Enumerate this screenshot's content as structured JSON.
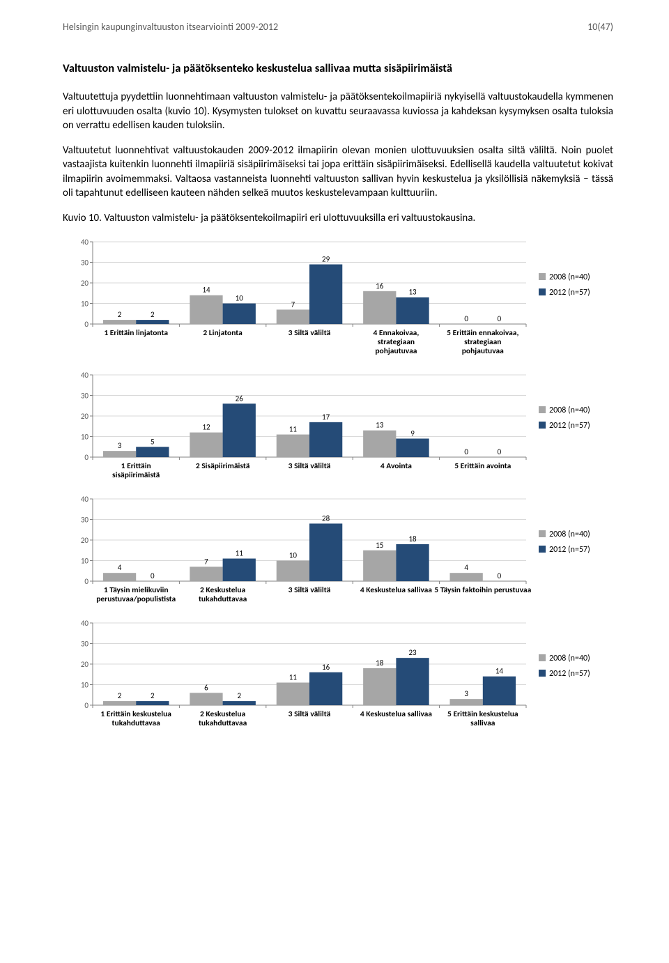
{
  "header": {
    "left": "Helsingin kaupunginvaltuuston itsearviointi 2009-2012",
    "right": "10(47)"
  },
  "section_title": "Valtuuston valmistelu- ja päätöksenteko keskustelua sallivaa mutta sisäpiirimäistä",
  "para1": "Valtuutettuja pyydettiin luonnehtimaan valtuuston valmistelu- ja päätöksentekoilmapiiriä nykyisellä valtuustokaudella kymmenen eri ulottuvuuden osalta (kuvio 10). Kysymysten tulokset on kuvattu seuraavassa kuviossa ja kahdeksan kysymyksen osalta tuloksia on verrattu edellisen kauden tuloksiin.",
  "para2": "Valtuutetut luonnehtivat valtuustokauden 2009-2012 ilmapiirin olevan monien ulottuvuuksien osalta siltä väliltä. Noin puolet vastaajista kuitenkin luonnehti ilmapiiriä sisäpiirimäiseksi tai jopa erittäin sisäpiirimäiseksi. Edellisellä kaudella valtuutetut kokivat ilmapiirin avoimemmaksi. Valtaosa vastanneista luonnehti valtuuston sallivan hyvin keskustelua ja yksilöllisiä näkemyksiä – tässä oli tapahtunut edelliseen kauteen nähden selkeä muutos keskustelevampaan kulttuuriin.",
  "caption": "Kuvio 10. Valtuuston valmistelu- ja päätöksentekoilmapiiri eri ulottuvuuksilla eri valtuustokausina.",
  "legend": {
    "series_a": "2008 (n=40)",
    "series_b": "2012 (n=57)"
  },
  "colors": {
    "bar_a": "#a6a6a6",
    "bar_b": "#254b77",
    "axis": "#808080",
    "grid": "#d9d9d9",
    "text": "#000000",
    "bg": "#ffffff"
  },
  "chart_meta": {
    "type": "bar",
    "ylim": [
      0,
      40
    ],
    "ytick_step": 10,
    "bar_width_ratio": 0.38,
    "label_fontsize": 11,
    "cat_fontsize": 11.5,
    "axis_fontsize": 11
  },
  "charts": [
    {
      "categories": [
        [
          "1 Erittäin linjatonta"
        ],
        [
          "2 Linjatonta"
        ],
        [
          "3 Siltä väliltä"
        ],
        [
          "4 Ennakoivaa,",
          "strategiaan",
          "pohjautuvaa"
        ],
        [
          "5 Erittäin ennakoivaa,",
          "strategiaan",
          "pohjautuvaa"
        ]
      ],
      "a": [
        2,
        14,
        7,
        16,
        0
      ],
      "b": [
        2,
        10,
        29,
        13,
        0
      ]
    },
    {
      "categories": [
        [
          "1 Erittäin",
          "sisäpiirimäistä"
        ],
        [
          "2 Sisäpiirimäistä"
        ],
        [
          "3 Siltä väliltä"
        ],
        [
          "4 Avointa"
        ],
        [
          "5 Erittäin avointa"
        ]
      ],
      "a": [
        3,
        12,
        11,
        13,
        0
      ],
      "b": [
        5,
        26,
        17,
        9,
        0
      ]
    },
    {
      "categories": [
        [
          "1 Täysin mielikuviin",
          "perustuvaa/populistista"
        ],
        [
          "2 Keskustelua",
          "tukahduttavaa"
        ],
        [
          "3 Siltä väliltä"
        ],
        [
          "4 Keskustelua sallivaa"
        ],
        [
          "5 Täysin faktoihin perustuvaa"
        ]
      ],
      "a": [
        4,
        7,
        10,
        15,
        4
      ],
      "b": [
        0,
        11,
        28,
        18,
        0
      ]
    },
    {
      "categories": [
        [
          "1 Erittäin keskustelua",
          "tukahduttavaa"
        ],
        [
          "2 Keskustelua",
          "tukahduttavaa"
        ],
        [
          "3 Siltä väliltä"
        ],
        [
          "4 Keskustelua sallivaa"
        ],
        [
          "5 Erittäin keskustelua",
          "sallivaa"
        ]
      ],
      "a": [
        2,
        6,
        11,
        18,
        3
      ],
      "b": [
        2,
        2,
        16,
        23,
        14
      ]
    }
  ]
}
